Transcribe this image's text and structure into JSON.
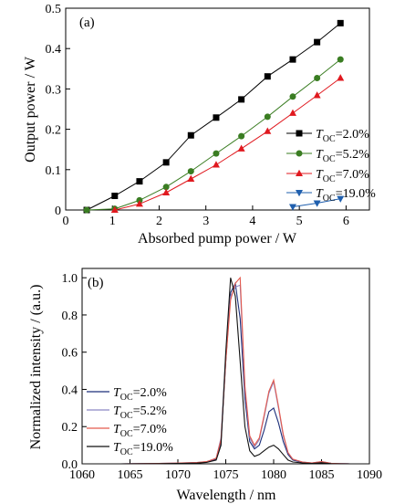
{
  "colors": {
    "black": "#000000",
    "green": "#3a7d22",
    "red": "#e0191f",
    "blue": "#1f5fae",
    "navy": "#1c2f7a",
    "lavender": "#8c88c4",
    "salmon": "#e45a4e",
    "dark": "#111111"
  },
  "chart_data": [
    {
      "type": "line",
      "panel_label": "(a)",
      "xlabel": "Absorbed pump power / W",
      "ylabel": "Output power / W",
      "xlim": [
        0,
        6.5
      ],
      "ylim": [
        0,
        0.5
      ],
      "xticks": [
        "0",
        "1",
        "2",
        "3",
        "4",
        "5",
        "6"
      ],
      "yticks": [
        "0",
        "0.1",
        "0.2",
        "0.3",
        "0.4",
        "0.5"
      ],
      "legend_position": "right",
      "series": [
        {
          "name_main": "T",
          "name_sub": "OC",
          "name_rest": "=2.0%",
          "marker": "square",
          "color": "#000000",
          "x": [
            0.45,
            1.05,
            1.58,
            2.15,
            2.68,
            3.22,
            3.76,
            4.32,
            4.86,
            5.38,
            5.88
          ],
          "y": [
            0.0,
            0.035,
            0.071,
            0.118,
            0.185,
            0.229,
            0.274,
            0.331,
            0.373,
            0.416,
            0.463
          ]
        },
        {
          "name_main": "T",
          "name_sub": "OC",
          "name_rest": "=5.2%",
          "marker": "circle",
          "color": "#3a7d22",
          "x": [
            0.45,
            1.05,
            1.58,
            2.15,
            2.68,
            3.22,
            3.76,
            4.32,
            4.86,
            5.38,
            5.88
          ],
          "y": [
            0.0,
            0.003,
            0.024,
            0.057,
            0.096,
            0.14,
            0.183,
            0.231,
            0.281,
            0.327,
            0.373
          ]
        },
        {
          "name_main": "T",
          "name_sub": "OC",
          "name_rest": "=7.0%",
          "marker": "triangle-up",
          "color": "#e0191f",
          "x": [
            1.05,
            1.58,
            2.15,
            2.68,
            3.22,
            3.76,
            4.32,
            4.86,
            5.38,
            5.88
          ],
          "y": [
            0.0,
            0.015,
            0.043,
            0.077,
            0.112,
            0.152,
            0.195,
            0.24,
            0.284,
            0.327
          ]
        },
        {
          "name_main": "T",
          "name_sub": "OC",
          "name_rest": "=19.0%",
          "marker": "triangle-down",
          "color": "#1f5fae",
          "x": [
            4.86,
            5.38,
            5.88
          ],
          "y": [
            0.008,
            0.017,
            0.028
          ]
        }
      ]
    },
    {
      "type": "line",
      "panel_label": "(b)",
      "xlabel": "Wavelength / nm",
      "ylabel": "Normalized intensity / (a.u.)",
      "xlim": [
        1060,
        1090
      ],
      "ylim": [
        0,
        1.05
      ],
      "xticks": [
        "1060",
        "1065",
        "1070",
        "1075",
        "1080",
        "1085",
        "1090"
      ],
      "yticks": [
        "0.0",
        "0.2",
        "0.4",
        "0.6",
        "0.8",
        "1.0"
      ],
      "legend_position": "lower-left",
      "x": [
        1060,
        1064,
        1068,
        1070,
        1072,
        1073,
        1074,
        1074.5,
        1075,
        1075.5,
        1076,
        1076.5,
        1077,
        1077.5,
        1078,
        1078.5,
        1079,
        1079.5,
        1080,
        1080.5,
        1081,
        1081.5,
        1082,
        1083,
        1084,
        1085,
        1086,
        1087,
        1088,
        1090
      ],
      "series": [
        {
          "name_main": "T",
          "name_sub": "OC",
          "name_rest": "=2.0%",
          "color": "#1c2f7a",
          "y": [
            0.0,
            0.0,
            0.002,
            0.003,
            0.006,
            0.01,
            0.025,
            0.12,
            0.55,
            0.92,
            0.97,
            0.78,
            0.35,
            0.12,
            0.08,
            0.1,
            0.18,
            0.28,
            0.3,
            0.22,
            0.12,
            0.05,
            0.02,
            0.008,
            0.004,
            0.01,
            0.002,
            0.001,
            0.0,
            0.0
          ]
        },
        {
          "name_main": "T",
          "name_sub": "OC",
          "name_rest": "=5.2%",
          "color": "#8c88c4",
          "y": [
            0.0,
            0.0,
            0.002,
            0.004,
            0.007,
            0.012,
            0.03,
            0.14,
            0.58,
            0.9,
            0.95,
            0.96,
            0.4,
            0.14,
            0.09,
            0.13,
            0.25,
            0.38,
            0.44,
            0.3,
            0.15,
            0.06,
            0.025,
            0.01,
            0.005,
            0.012,
            0.003,
            0.001,
            0.0,
            0.0
          ]
        },
        {
          "name_main": "T",
          "name_sub": "OC",
          "name_rest": "=7.0%",
          "color": "#e45a4e",
          "y": [
            0.0,
            0.0,
            0.002,
            0.004,
            0.007,
            0.012,
            0.03,
            0.13,
            0.55,
            0.88,
            0.97,
            1.0,
            0.42,
            0.15,
            0.1,
            0.14,
            0.26,
            0.39,
            0.45,
            0.31,
            0.16,
            0.06,
            0.025,
            0.01,
            0.005,
            0.012,
            0.003,
            0.001,
            0.0,
            0.0
          ]
        },
        {
          "name_main": "T",
          "name_sub": "OC",
          "name_rest": "=19.0%",
          "color": "#111111",
          "y": [
            0.0,
            0.0,
            0.001,
            0.002,
            0.004,
            0.008,
            0.02,
            0.1,
            0.6,
            1.0,
            0.9,
            0.55,
            0.2,
            0.07,
            0.04,
            0.05,
            0.07,
            0.09,
            0.1,
            0.08,
            0.05,
            0.02,
            0.01,
            0.005,
            0.002,
            0.006,
            0.001,
            0.0,
            0.0,
            0.0
          ]
        }
      ]
    }
  ]
}
